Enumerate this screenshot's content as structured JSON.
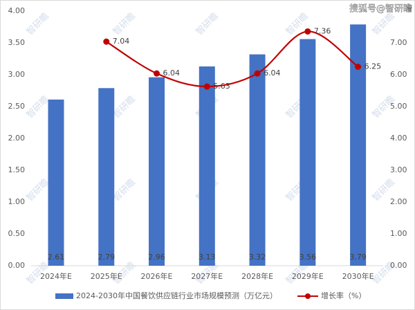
{
  "chart_data": {
    "type": "bar-line",
    "watermark": "智研瞻",
    "source_mark": "搜狐号@智研瞻",
    "categories": [
      "2024年E",
      "2025年E",
      "2026年E",
      "2027年E",
      "2028年E",
      "2029年E",
      "2030年E"
    ],
    "series": [
      {
        "name": "2024-2030年中国餐饮供应链行业市场规模预测（万亿元）",
        "type": "bar",
        "color": "#4472c4",
        "values": [
          2.61,
          2.79,
          2.96,
          3.13,
          3.32,
          3.56,
          3.79
        ]
      },
      {
        "name": "增长率（%）",
        "type": "line",
        "axis": "y2",
        "color": "#c00000",
        "values": [
          null,
          7.04,
          6.04,
          5.63,
          6.04,
          7.36,
          6.25
        ]
      }
    ],
    "ylim": [
      0,
      4
    ],
    "yticks": [
      {
        "value": 0,
        "label": "0.00"
      },
      {
        "value": 0.5,
        "label": "0.50"
      },
      {
        "value": 1,
        "label": "1.00"
      },
      {
        "value": 1.5,
        "label": "1.50"
      },
      {
        "value": 2,
        "label": "2.00"
      },
      {
        "value": 2.5,
        "label": "2.50"
      },
      {
        "value": 3,
        "label": "3.00"
      },
      {
        "value": 3.5,
        "label": "3.50"
      },
      {
        "value": 4,
        "label": "4.00"
      }
    ],
    "y2lim": [
      0,
      8
    ],
    "y2ticks": [
      {
        "value": 0,
        "label": "0.00"
      },
      {
        "value": 1,
        "label": "1.00"
      },
      {
        "value": 2,
        "label": "2.00"
      },
      {
        "value": 3,
        "label": "3.00"
      },
      {
        "value": 4,
        "label": "4.00"
      },
      {
        "value": 5,
        "label": "5.00"
      },
      {
        "value": 6,
        "label": "6.00"
      },
      {
        "value": 7,
        "label": "7.00"
      }
    ],
    "legend": "bottom"
  }
}
